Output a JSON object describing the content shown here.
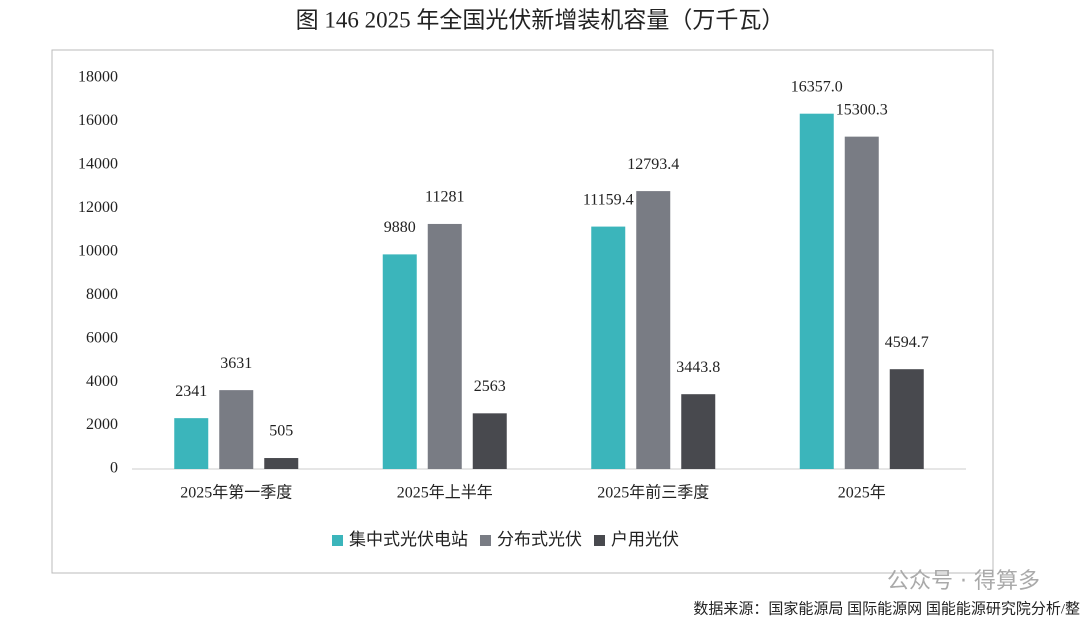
{
  "chart_data": {
    "type": "bar",
    "title": "图 146 2025 年全国光伏新增装机容量（万千瓦）",
    "categories": [
      "2025年第一季度",
      "2025年上半年",
      "2025年前三季度",
      "2025年"
    ],
    "series": [
      {
        "name": "集中式光伏电站",
        "color": "#3bb5bb",
        "values": [
          2341,
          9880,
          11159.4,
          16357.0
        ],
        "value_labels": [
          "2341",
          "9880",
          "11159.4",
          "16357.0"
        ]
      },
      {
        "name": "分布式光伏",
        "color": "#797c84",
        "values": [
          3631,
          11281,
          12793.4,
          15300.3
        ],
        "value_labels": [
          "3631",
          "11281",
          "12793.4",
          "15300.3"
        ]
      },
      {
        "name": "户用光伏",
        "color": "#48494e",
        "values": [
          505,
          2563,
          3443.8,
          4594.7
        ],
        "value_labels": [
          "505",
          "2563",
          "3443.8",
          "4594.7"
        ]
      }
    ],
    "ylim": [
      0,
      18000
    ],
    "yticks": [
      0,
      2000,
      4000,
      6000,
      8000,
      10000,
      12000,
      14000,
      16000,
      18000
    ],
    "grid": false,
    "legend": "bottom",
    "source": "数据来源：国家能源局 国际能源网 国能能源研究院分析/整",
    "watermark": "公众号 · 得算多"
  }
}
